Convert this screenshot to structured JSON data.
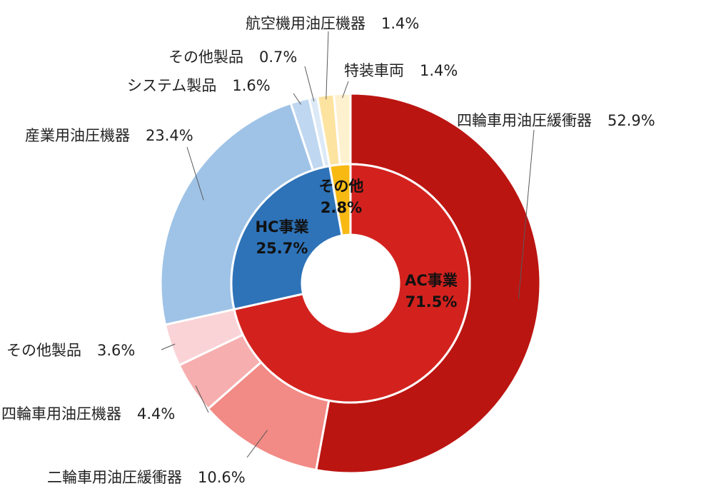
{
  "chart_data": {
    "type": "pie",
    "variant": "nested-donut",
    "direction": "clockwise",
    "start": "top",
    "inner_ring": [
      {
        "name": "AC事業",
        "value": 71.5,
        "value_label": "71.5%",
        "color": "#d3221e",
        "label_color": "#111111"
      },
      {
        "name": "HC事業",
        "value": 25.7,
        "value_label": "25.7%",
        "color": "#2e73b8",
        "label_color": "#111111"
      },
      {
        "name": "その他",
        "value": 2.8,
        "value_label": "2.8%",
        "color": "#f8b913",
        "label_color": "#111111"
      }
    ],
    "outer_ring": [
      {
        "name": "四輪車用油圧緩衝器",
        "value": 52.9,
        "value_label": "52.9%",
        "color": "#bb1511",
        "parent": "AC事業"
      },
      {
        "name": "二輪車用油圧緩衝器",
        "value": 10.6,
        "value_label": "10.6%",
        "color": "#f28a85",
        "parent": "AC事業"
      },
      {
        "name": "四輪車用油圧機器",
        "value": 4.4,
        "value_label": "4.4%",
        "color": "#f6aeae",
        "parent": "AC事業"
      },
      {
        "name": "その他製品",
        "value": 3.6,
        "value_label": "3.6%",
        "color": "#fad3d6",
        "parent": "AC事業"
      },
      {
        "name": "産業用油圧機器",
        "value": 23.4,
        "value_label": "23.4%",
        "color": "#9fc3e7",
        "parent": "HC事業"
      },
      {
        "name": "システム製品",
        "value": 1.6,
        "value_label": "1.6%",
        "color": "#bfd7f0",
        "parent": "HC事業"
      },
      {
        "name": "その他製品",
        "value": 0.7,
        "value_label": "0.7%",
        "color": "#dce9f7",
        "parent": "HC事業"
      },
      {
        "name": "航空機用油圧機器",
        "value": 1.4,
        "value_label": "1.4%",
        "color": "#fde3a0",
        "parent": "その他"
      },
      {
        "name": "特装車両",
        "value": 1.4,
        "value_label": "1.4%",
        "color": "#fef1cf",
        "parent": "その他"
      }
    ]
  }
}
